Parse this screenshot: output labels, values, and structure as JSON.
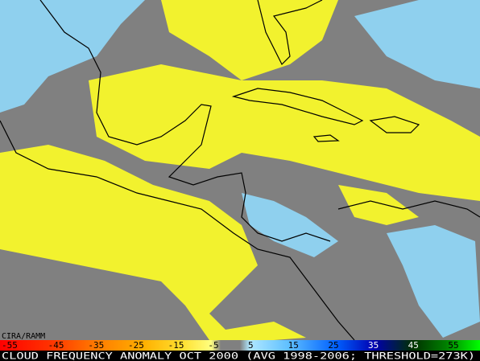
{
  "credit": "CIRA/RAMM",
  "legend": {
    "ticks": [
      -55,
      -45,
      -35,
      -25,
      -15,
      -5,
      5,
      15,
      25,
      35,
      45,
      55
    ]
  },
  "caption": "CLOUD FREQUENCY ANOMALY OCT 2000 (AVG 1998-2006; THRESHOLD=273K)"
}
